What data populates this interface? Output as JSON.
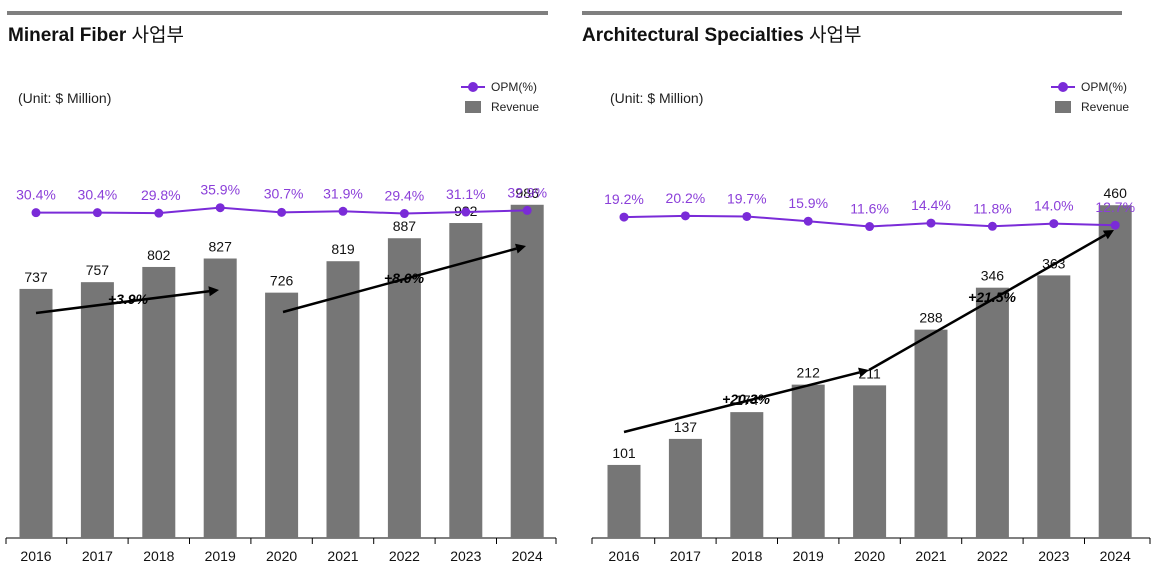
{
  "chart_data": [
    {
      "type": "bar+line",
      "title": "Mineral Fiber",
      "title_suffix": "사업부",
      "unit": "(Unit: $ Million)",
      "categories": [
        "2016",
        "2017",
        "2018",
        "2019",
        "2020",
        "2021",
        "2022",
        "2023",
        "2024"
      ],
      "series": [
        {
          "name": "Revenue",
          "type": "bar",
          "values": [
            737,
            757,
            802,
            827,
            726,
            819,
            887,
            932,
            986
          ]
        },
        {
          "name": "OPM(%)",
          "type": "line",
          "values": [
            30.4,
            30.4,
            29.8,
            35.9,
            30.7,
            31.9,
            29.4,
            31.1,
            32.9
          ],
          "labels": [
            "30.4%",
            "30.4%",
            "29.8%",
            "35.9%",
            "30.7%",
            "31.9%",
            "29.4%",
            "31.1%",
            "32.9%"
          ]
        }
      ],
      "legend": [
        "OPM(%)",
        "Revenue"
      ],
      "legend_position": "top-right",
      "ylim_bar": [
        0,
        1370
      ],
      "ylim_line": [
        0,
        100
      ],
      "annotations": [
        {
          "text": "+3.9%",
          "from": "2016",
          "to": "2019"
        },
        {
          "text": "+8.0%",
          "from": "2020",
          "to": "2024"
        }
      ],
      "colors": {
        "bar": "#767676",
        "line": "#7a2bd8",
        "label_line": "#8b3fd9",
        "arrow": "#000000",
        "rule": "#7f7f7f"
      }
    },
    {
      "type": "bar+line",
      "title": "Architectural Specialties",
      "title_suffix": "사업부",
      "unit": "(Unit: $ Million)",
      "categories": [
        "2016",
        "2017",
        "2018",
        "2019",
        "2020",
        "2021",
        "2022",
        "2023",
        "2024"
      ],
      "series": [
        {
          "name": "Revenue",
          "type": "bar",
          "values": [
            101,
            137,
            174,
            212,
            211,
            288,
            346,
            363,
            460
          ]
        },
        {
          "name": "OPM(%)",
          "type": "line",
          "values": [
            19.2,
            20.2,
            19.7,
            15.9,
            11.6,
            14.4,
            11.8,
            14.0,
            12.7
          ],
          "labels": [
            "19.2%",
            "20.2%",
            "19.7%",
            "15.9%",
            "11.6%",
            "14.4%",
            "11.8%",
            "14.0%",
            "12.7%"
          ]
        }
      ],
      "legend": [
        "OPM(%)",
        "Revenue"
      ],
      "legend_position": "top-right",
      "ylim_bar": [
        0,
        640
      ],
      "ylim_line": [
        0,
        30
      ],
      "annotations": [
        {
          "text": "+20.3%",
          "from": "2016",
          "to": "2020"
        },
        {
          "text": "+21.5%",
          "from": "2020",
          "to": "2024"
        }
      ],
      "colors": {
        "bar": "#767676",
        "line": "#7a2bd8",
        "label_line": "#8b3fd9",
        "arrow": "#000000",
        "rule": "#7f7f7f"
      }
    }
  ]
}
